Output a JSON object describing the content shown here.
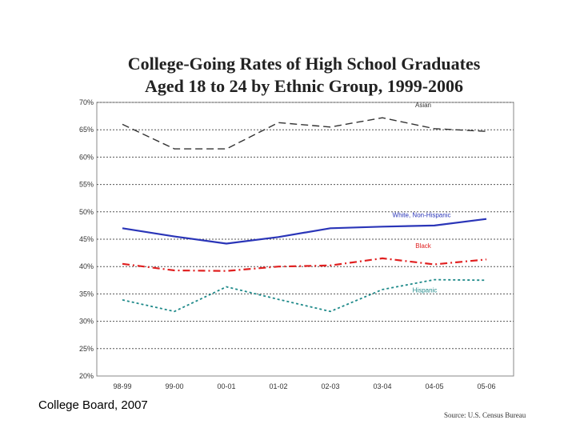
{
  "chart_data": {
    "type": "line",
    "title_line1": "College-Going Rates of High School Graduates",
    "title_line2": "Aged 18 to 24 by Ethnic Group, 1999-2006",
    "categories": [
      "98-99",
      "99-00",
      "00-01",
      "01-02",
      "02-03",
      "03-04",
      "04-05",
      "05-06"
    ],
    "ylim": [
      20,
      70
    ],
    "yticks": [
      "20%",
      "25%",
      "30%",
      "35%",
      "40%",
      "45%",
      "50%",
      "55%",
      "60%",
      "65%",
      "70%"
    ],
    "grid": true,
    "series": [
      {
        "name": "Asian",
        "color": "#333333",
        "dash": "long-dash",
        "values": [
          66.0,
          61.5,
          61.5,
          66.3,
          65.5,
          67.2,
          65.2,
          64.7
        ]
      },
      {
        "name": "White, Non-Hispanic",
        "color": "#2a35b8",
        "dash": "solid",
        "values": [
          47.0,
          45.5,
          44.2,
          45.4,
          47.0,
          47.3,
          47.5,
          48.7
        ]
      },
      {
        "name": "Black",
        "color": "#e02020",
        "dash": "dash-dot",
        "values": [
          40.5,
          39.3,
          39.2,
          40.0,
          40.2,
          41.5,
          40.4,
          41.3
        ]
      },
      {
        "name": "Hispanic",
        "color": "#1f8a8a",
        "dash": "dotted",
        "values": [
          33.9,
          31.8,
          36.3,
          34.0,
          31.8,
          35.8,
          37.6,
          37.5
        ]
      }
    ]
  },
  "footer": {
    "credit": "College Board, 2007",
    "source": "Source: U.S. Census Bureau"
  }
}
